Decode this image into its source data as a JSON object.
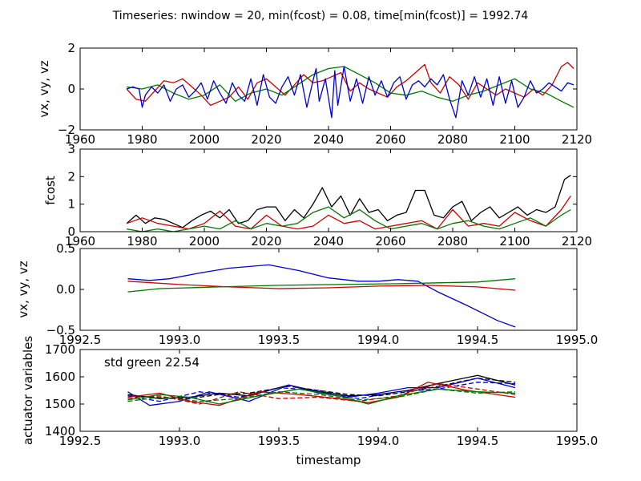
{
  "figure": {
    "title": "Timeseries: nwindow = 20, min(fcost) = 0.08, time[min(fcost)] = 1992.74"
  },
  "chart_data": [
    {
      "id": "vel-long",
      "type": "line",
      "xlabel": "",
      "ylabel": "vx, vy, vz",
      "xlim": [
        1960,
        2120
      ],
      "ylim": [
        -2,
        2
      ],
      "xticks": [
        1960,
        1980,
        2000,
        2020,
        2040,
        2060,
        2080,
        2100,
        2120
      ],
      "yticks": [
        -2,
        0,
        2
      ],
      "xtick_labels": [
        "1960",
        "1980",
        "2000",
        "2020",
        "2040",
        "2060",
        "2080",
        "2100",
        "2120"
      ],
      "ytick_labels": [
        "−2",
        "0",
        "2"
      ],
      "series": [
        {
          "color": "#cc0000",
          "style": "solid",
          "x": [
            1975,
            1978,
            1981,
            1984,
            1987,
            1990,
            1993,
            1996,
            1999,
            2002,
            2005,
            2008,
            2011,
            2014,
            2017,
            2020,
            2023,
            2026,
            2029,
            2032,
            2035,
            2038,
            2041,
            2044,
            2047,
            2050,
            2053,
            2056,
            2059,
            2062,
            2065,
            2068,
            2071,
            2073,
            2076,
            2079,
            2082,
            2085,
            2088,
            2091,
            2094,
            2097,
            2100,
            2103,
            2106,
            2109,
            2112,
            2115,
            2117,
            2119
          ],
          "y": [
            0,
            -0.5,
            -0.6,
            -0.1,
            0.4,
            0.3,
            0.5,
            0.1,
            -0.3,
            -0.8,
            -0.6,
            -0.4,
            0.1,
            -0.5,
            0.3,
            0.5,
            0.1,
            -0.3,
            0.2,
            0.7,
            0.3,
            0.4,
            0.6,
            0.8,
            -0.1,
            0.3,
            0,
            -0.2,
            -0.4,
            0.1,
            0.4,
            0.8,
            1.2,
            0.3,
            -0.2,
            0.6,
            0.2,
            -0.5,
            0.3,
            0,
            -0.3,
            0,
            -0.2,
            -0.4,
            0,
            -0.3,
            0.2,
            1.1,
            1.3,
            1
          ]
        },
        {
          "color": "#007700",
          "style": "solid",
          "x": [
            1975,
            1980,
            1985,
            1990,
            1995,
            2000,
            2005,
            2010,
            2015,
            2020,
            2025,
            2030,
            2035,
            2040,
            2045,
            2050,
            2055,
            2060,
            2065,
            2070,
            2075,
            2080,
            2085,
            2090,
            2095,
            2100,
            2105,
            2110,
            2115,
            2119
          ],
          "y": [
            0.1,
            0,
            0.2,
            -0.2,
            -0.5,
            -0.3,
            0.2,
            -0.6,
            -0.2,
            0,
            -0.3,
            0.2,
            0.7,
            1,
            1.1,
            0.7,
            0.3,
            -0.2,
            -0.3,
            -0.1,
            -0.4,
            -0.6,
            -0.3,
            -0.1,
            0.2,
            0.5,
            0,
            -0.2,
            -0.6,
            -0.9
          ]
        },
        {
          "color": "#0000cc",
          "style": "solid",
          "x": [
            1975,
            1977,
            1979,
            1980,
            1981,
            1983,
            1985,
            1987,
            1989,
            1991,
            1993,
            1995,
            1997,
            1999,
            2001,
            2003,
            2005,
            2007,
            2009,
            2011,
            2013,
            2015,
            2017,
            2019,
            2021,
            2023,
            2025,
            2027,
            2029,
            2031,
            2033,
            2035,
            2036,
            2037,
            2039,
            2041,
            2042,
            2043,
            2045,
            2047,
            2049,
            2051,
            2053,
            2055,
            2057,
            2059,
            2061,
            2063,
            2065,
            2067,
            2069,
            2071,
            2073,
            2075,
            2077,
            2079,
            2081,
            2083,
            2085,
            2087,
            2089,
            2091,
            2093,
            2095,
            2097,
            2099,
            2101,
            2103,
            2105,
            2107,
            2109,
            2111,
            2113,
            2115,
            2117,
            2119
          ],
          "y": [
            0,
            0.1,
            0,
            -0.9,
            -0.3,
            0.1,
            -0.2,
            0.2,
            -0.6,
            0,
            0.2,
            -0.4,
            -0.1,
            0.3,
            -0.5,
            0.4,
            -0.2,
            -0.7,
            0.3,
            -0.3,
            -0.6,
            0.5,
            -0.8,
            0.7,
            -0.4,
            -0.7,
            0.1,
            0.6,
            -0.3,
            0.7,
            -0.9,
            0.4,
            1,
            -0.6,
            0.5,
            -1.4,
            0.9,
            -0.8,
            1.1,
            -0.6,
            0.5,
            -0.7,
            0.6,
            -0.3,
            0.4,
            -0.4,
            0.3,
            0.6,
            -0.5,
            0.2,
            0.4,
            0.1,
            0.5,
            0.2,
            0.7,
            -0.5,
            -1.4,
            0.4,
            -0.3,
            0.6,
            -0.4,
            0.5,
            -0.8,
            0.6,
            -0.7,
            0.4,
            -0.9,
            -0.4,
            0.4,
            -0.2,
            0,
            0.3,
            0.1,
            -0.1,
            0.3,
            0.2
          ]
        }
      ]
    },
    {
      "id": "fcost-long",
      "type": "line",
      "xlabel": "",
      "ylabel": "fcost",
      "xlim": [
        1960,
        2120
      ],
      "ylim": [
        0,
        3
      ],
      "xticks": [
        1960,
        1980,
        2000,
        2020,
        2040,
        2060,
        2080,
        2100,
        2120
      ],
      "yticks": [
        0,
        1,
        2,
        3
      ],
      "xtick_labels": [
        "1960",
        "1980",
        "2000",
        "2020",
        "2040",
        "2060",
        "2080",
        "2100",
        "2120"
      ],
      "ytick_labels": [
        "0",
        "1",
        "2",
        "3"
      ],
      "series": [
        {
          "color": "#000000",
          "style": "solid",
          "x": [
            1975,
            1978,
            1981,
            1984,
            1987,
            1990,
            1993,
            1996,
            1999,
            2002,
            2005,
            2008,
            2011,
            2014,
            2017,
            2020,
            2023,
            2026,
            2029,
            2032,
            2035,
            2038,
            2041,
            2044,
            2047,
            2050,
            2053,
            2056,
            2059,
            2062,
            2065,
            2068,
            2071,
            2074,
            2077,
            2080,
            2083,
            2086,
            2089,
            2092,
            2095,
            2098,
            2101,
            2104,
            2107,
            2110,
            2113,
            2116,
            2118
          ],
          "y": [
            0.3,
            0.6,
            0.3,
            0.5,
            0.45,
            0.3,
            0.15,
            0.4,
            0.6,
            0.75,
            0.5,
            0.8,
            0.3,
            0.4,
            0.8,
            0.9,
            0.9,
            0.4,
            0.8,
            0.5,
            1,
            1.6,
            0.9,
            1.3,
            0.6,
            1.2,
            0.7,
            0.8,
            0.4,
            0.6,
            0.7,
            1.5,
            1.5,
            0.6,
            0.5,
            0.9,
            1.1,
            0.4,
            0.7,
            0.9,
            0.5,
            0.7,
            0.9,
            0.6,
            0.8,
            0.7,
            0.9,
            1.9,
            2.05
          ]
        },
        {
          "color": "#cc0000",
          "style": "solid",
          "x": [
            1975,
            1980,
            1985,
            1990,
            1995,
            2000,
            2005,
            2010,
            2015,
            2020,
            2025,
            2030,
            2035,
            2040,
            2045,
            2050,
            2055,
            2060,
            2065,
            2070,
            2075,
            2080,
            2085,
            2090,
            2095,
            2100,
            2105,
            2110,
            2115,
            2118
          ],
          "y": [
            0.3,
            0.5,
            0.3,
            0.2,
            0.1,
            0.3,
            0.75,
            0.2,
            0.1,
            0.6,
            0.2,
            0.1,
            0.2,
            0.6,
            0.3,
            0.4,
            0.1,
            0.2,
            0.3,
            0.4,
            0.1,
            0.8,
            0.2,
            0.3,
            0.2,
            0.7,
            0.4,
            0.2,
            0.8,
            1.3
          ]
        },
        {
          "color": "#007700",
          "style": "solid",
          "x": [
            1975,
            1980,
            1985,
            1990,
            1995,
            2000,
            2005,
            2010,
            2015,
            2020,
            2025,
            2030,
            2035,
            2040,
            2045,
            2050,
            2055,
            2060,
            2065,
            2070,
            2075,
            2080,
            2085,
            2090,
            2095,
            2100,
            2105,
            2110,
            2115,
            2118
          ],
          "y": [
            0.1,
            0,
            0.1,
            0,
            0.1,
            0.2,
            0.1,
            0.4,
            0.1,
            0.3,
            0.2,
            0.3,
            0.7,
            0.9,
            0.5,
            0.8,
            0.4,
            0.1,
            0.2,
            0.3,
            0.1,
            0.3,
            0.4,
            0.2,
            0.1,
            0.3,
            0.5,
            0.2,
            0.6,
            0.8
          ]
        }
      ]
    },
    {
      "id": "vel-short",
      "type": "line",
      "xlabel": "",
      "ylabel": "vx, vy, vz",
      "xlim": [
        1992.5,
        1995.0
      ],
      "ylim": [
        -0.5,
        0.5
      ],
      "xticks": [
        1992.5,
        1993.0,
        1993.5,
        1994.0,
        1994.5,
        1995.0
      ],
      "yticks": [
        -0.5,
        0,
        0.5
      ],
      "xtick_labels": [
        "1992.5",
        "1993.0",
        "1993.5",
        "1994.0",
        "1994.5",
        "1995.0"
      ],
      "ytick_labels": [
        "−0.5",
        "0.0",
        "0.5"
      ],
      "series": [
        {
          "color": "#0000cc",
          "style": "solid",
          "x": [
            1992.74,
            1992.85,
            1992.95,
            1993.1,
            1993.25,
            1993.45,
            1993.6,
            1993.75,
            1993.9,
            1994.0,
            1994.1,
            1994.2,
            1994.3,
            1994.45,
            1994.6,
            1994.69
          ],
          "y": [
            0.13,
            0.11,
            0.13,
            0.2,
            0.26,
            0.3,
            0.23,
            0.14,
            0.1,
            0.1,
            0.12,
            0.1,
            -0.03,
            -0.2,
            -0.38,
            -0.46
          ]
        },
        {
          "color": "#cc0000",
          "style": "solid",
          "x": [
            1992.74,
            1993.0,
            1993.25,
            1993.5,
            1993.75,
            1994.0,
            1994.25,
            1994.5,
            1994.69
          ],
          "y": [
            0.1,
            0.06,
            0.03,
            0.01,
            0.02,
            0.04,
            0.05,
            0.03,
            -0.01
          ]
        },
        {
          "color": "#007700",
          "style": "solid",
          "x": [
            1992.74,
            1992.9,
            1993.2,
            1993.5,
            1993.8,
            1994.1,
            1994.3,
            1994.5,
            1994.69
          ],
          "y": [
            -0.03,
            0.01,
            0.03,
            0.05,
            0.06,
            0.07,
            0.08,
            0.09,
            0.13
          ]
        }
      ]
    },
    {
      "id": "actuators-short",
      "type": "line",
      "xlabel": "timestamp",
      "ylabel": "actuator variables",
      "xlim": [
        1992.5,
        1995.0
      ],
      "ylim": [
        1400,
        1700
      ],
      "xticks": [
        1992.5,
        1993.0,
        1993.5,
        1994.0,
        1994.5,
        1995.0
      ],
      "yticks": [
        1400,
        1500,
        1600,
        1700
      ],
      "xtick_labels": [
        "1992.5",
        "1993.0",
        "1993.5",
        "1994.0",
        "1994.5",
        "1995.0"
      ],
      "ytick_labels": [
        "1400",
        "1500",
        "1600",
        "1700"
      ],
      "annotation": "std green 22.54",
      "series": [
        {
          "color": "#000000",
          "style": "solid",
          "x": [
            1992.74,
            1992.9,
            1993.05,
            1993.2,
            1993.35,
            1993.55,
            1993.7,
            1993.85,
            1994.0,
            1994.15,
            1994.3,
            1994.5,
            1994.69
          ],
          "y": [
            1535,
            1520,
            1525,
            1540,
            1530,
            1570,
            1545,
            1530,
            1535,
            1550,
            1575,
            1605,
            1570
          ]
        },
        {
          "color": "#000000",
          "style": "dashed",
          "x": [
            1992.74,
            1992.9,
            1993.05,
            1993.2,
            1993.35,
            1993.55,
            1993.7,
            1993.85,
            1994.0,
            1994.15,
            1994.3,
            1994.5,
            1994.69
          ],
          "y": [
            1530,
            1525,
            1520,
            1535,
            1540,
            1565,
            1550,
            1535,
            1530,
            1545,
            1565,
            1595,
            1580
          ]
        },
        {
          "color": "#0000cc",
          "style": "solid",
          "x": [
            1992.74,
            1992.85,
            1993.0,
            1993.15,
            1993.35,
            1993.55,
            1993.7,
            1993.85,
            1994.0,
            1994.15,
            1994.3,
            1994.5,
            1994.69
          ],
          "y": [
            1545,
            1495,
            1510,
            1545,
            1510,
            1570,
            1540,
            1525,
            1540,
            1560,
            1560,
            1595,
            1560
          ]
        },
        {
          "color": "#0000cc",
          "style": "dashed",
          "x": [
            1992.74,
            1992.9,
            1993.1,
            1993.3,
            1993.5,
            1993.7,
            1993.9,
            1994.1,
            1994.3,
            1994.5,
            1994.69
          ],
          "y": [
            1530,
            1510,
            1545,
            1525,
            1560,
            1550,
            1520,
            1545,
            1555,
            1580,
            1575
          ]
        },
        {
          "color": "#cc0000",
          "style": "solid",
          "x": [
            1992.74,
            1992.9,
            1993.05,
            1993.2,
            1993.4,
            1993.6,
            1993.8,
            1993.95,
            1994.1,
            1994.25,
            1994.45,
            1994.69
          ],
          "y": [
            1525,
            1540,
            1510,
            1495,
            1545,
            1535,
            1520,
            1505,
            1525,
            1580,
            1550,
            1525
          ]
        },
        {
          "color": "#cc0000",
          "style": "dashed",
          "x": [
            1992.74,
            1992.9,
            1993.1,
            1993.3,
            1993.5,
            1993.7,
            1993.9,
            1994.1,
            1994.3,
            1994.5,
            1994.69
          ],
          "y": [
            1520,
            1530,
            1500,
            1545,
            1520,
            1525,
            1510,
            1530,
            1575,
            1555,
            1535
          ]
        },
        {
          "color": "#007700",
          "style": "solid",
          "x": [
            1992.74,
            1992.9,
            1993.05,
            1993.2,
            1993.4,
            1993.6,
            1993.8,
            1993.95,
            1994.1,
            1994.3,
            1994.5,
            1994.69
          ],
          "y": [
            1515,
            1535,
            1525,
            1500,
            1530,
            1555,
            1530,
            1500,
            1530,
            1555,
            1545,
            1540
          ]
        },
        {
          "color": "#007700",
          "style": "dashed",
          "x": [
            1992.74,
            1992.9,
            1993.1,
            1993.3,
            1993.5,
            1993.7,
            1993.9,
            1994.1,
            1994.3,
            1994.5,
            1994.69
          ],
          "y": [
            1510,
            1525,
            1510,
            1520,
            1545,
            1535,
            1515,
            1525,
            1555,
            1540,
            1545
          ]
        }
      ]
    }
  ]
}
